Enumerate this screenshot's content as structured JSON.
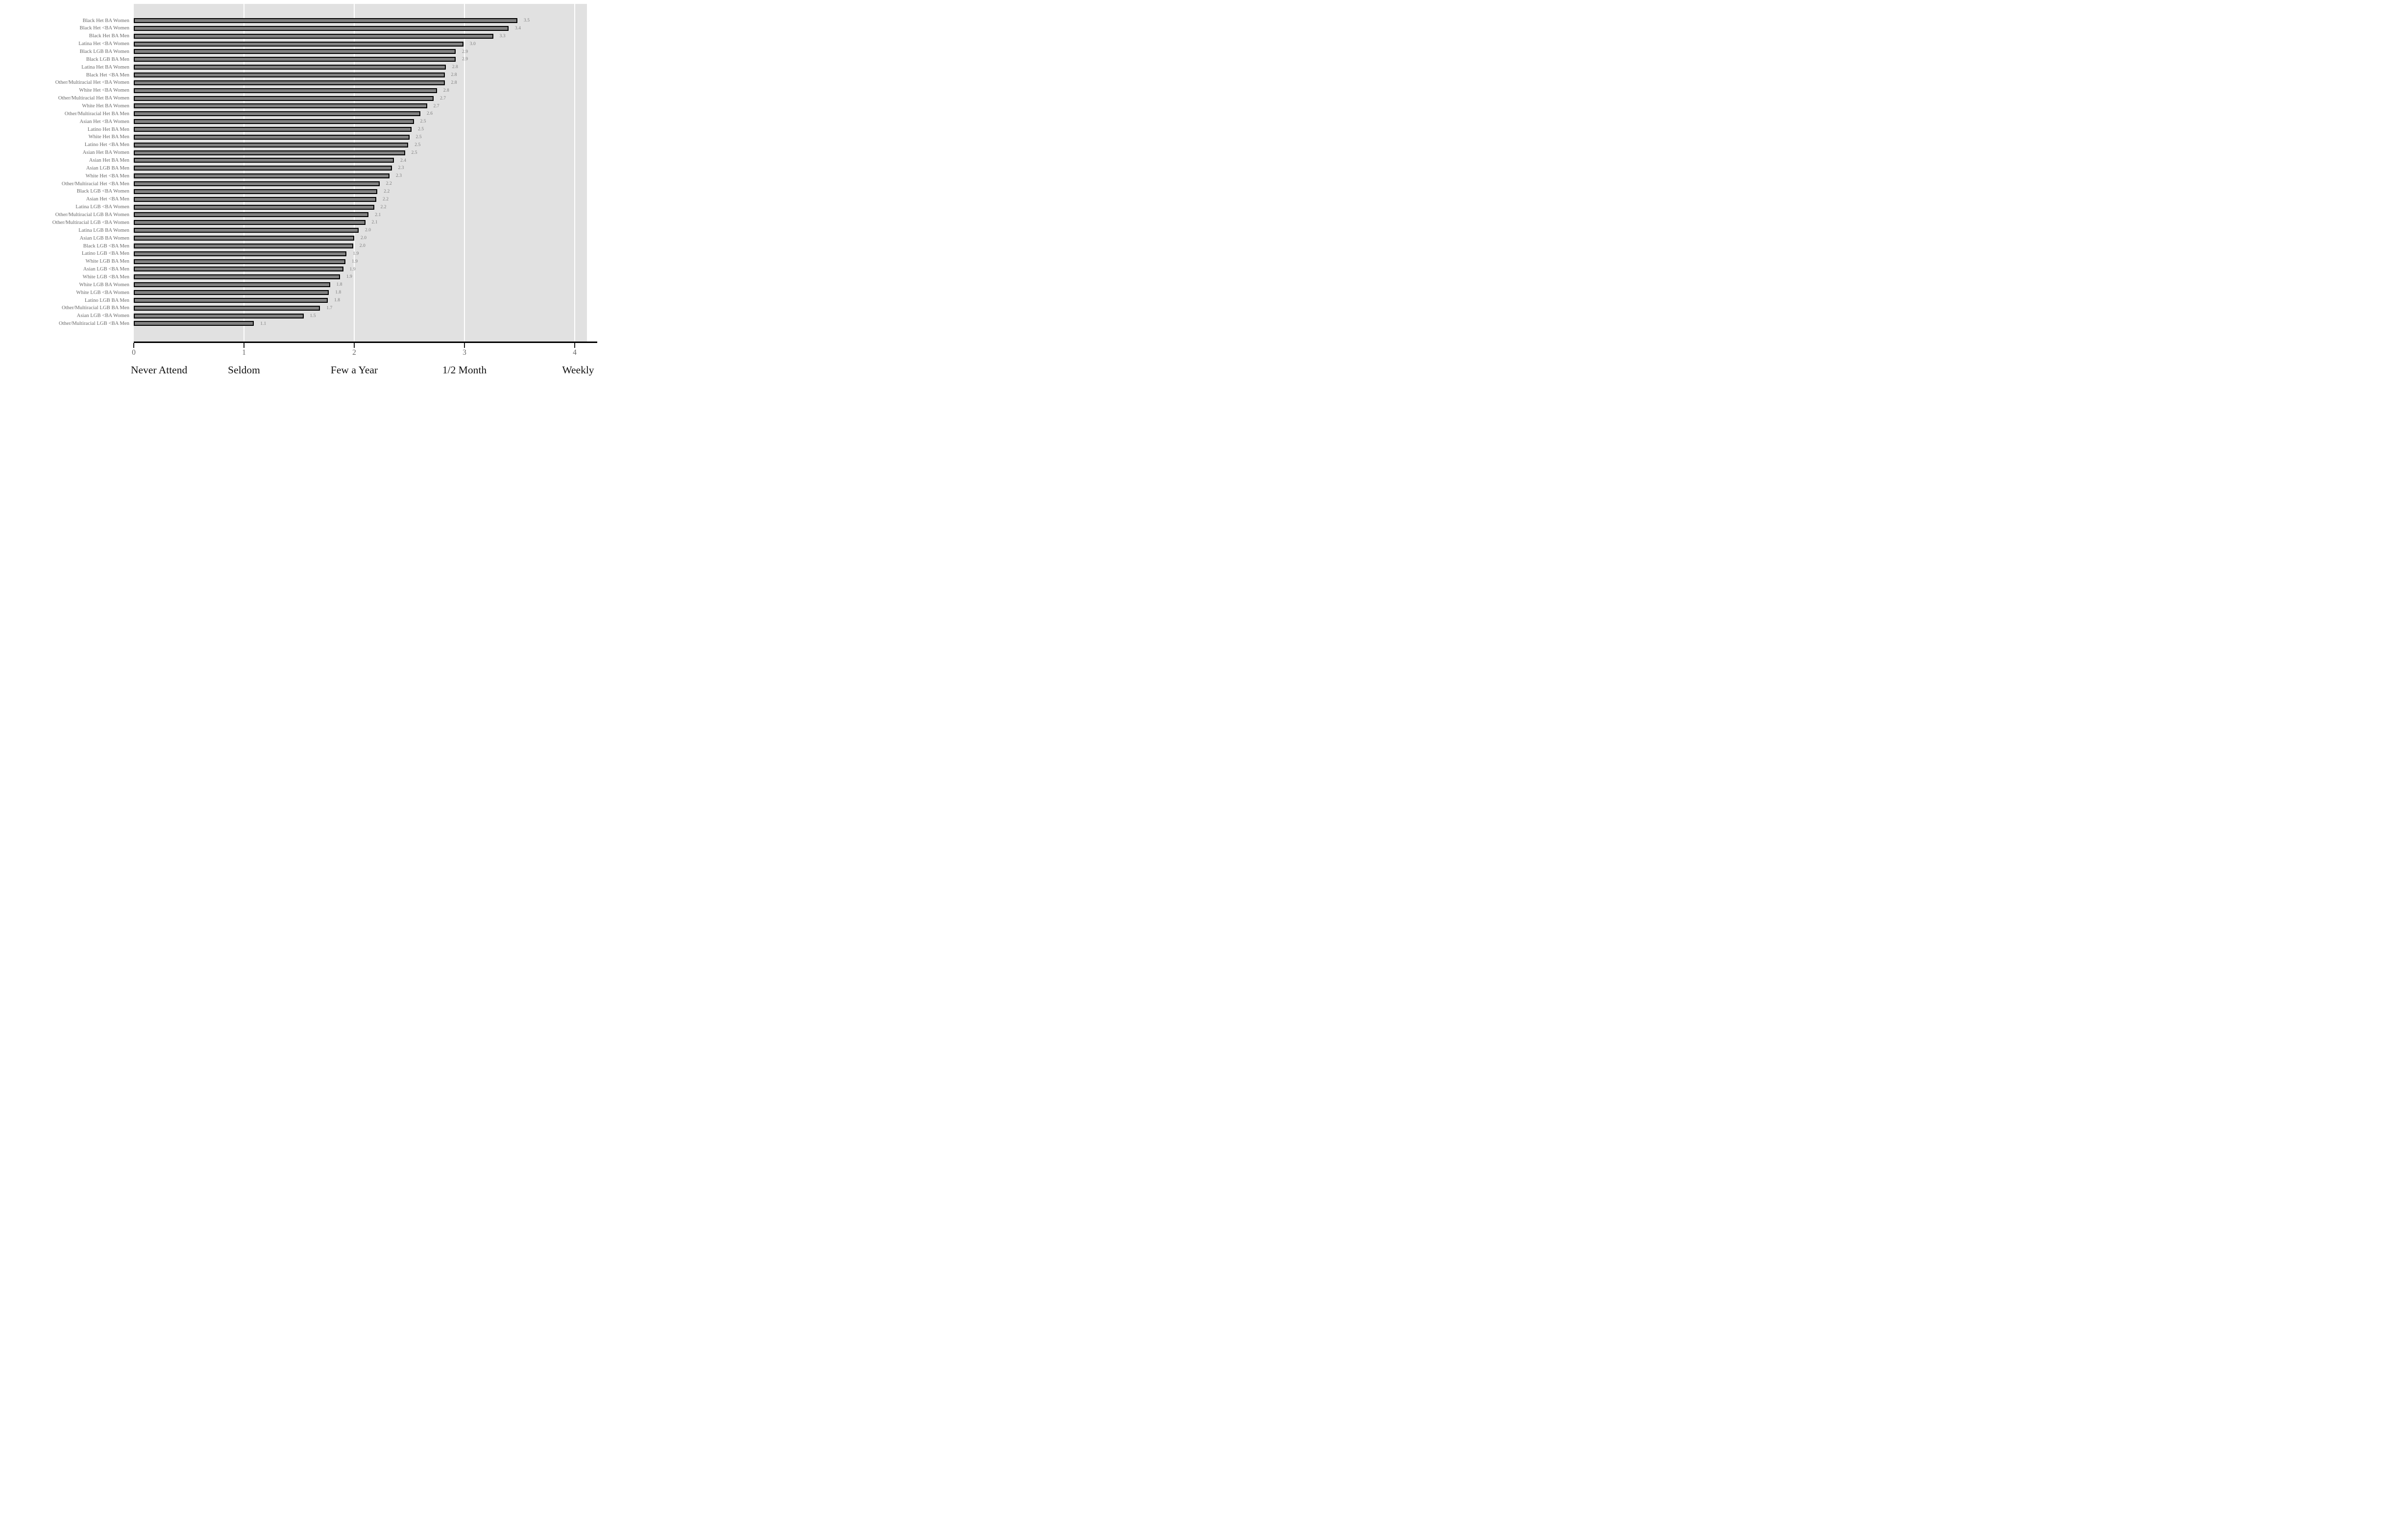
{
  "chart_data": {
    "type": "bar",
    "orientation": "horizontal",
    "title": "",
    "xlabel": "",
    "ylabel": "",
    "xlim": [
      0,
      4.11
    ],
    "grid": "vertical white gridlines at each x tick on gray plot background",
    "legend": null,
    "x_ticks": [
      0,
      1,
      2,
      3,
      4
    ],
    "x_tick_labels": [
      "0",
      "1",
      "2",
      "3",
      "4"
    ],
    "x_tick_names": [
      "Never Attend",
      "Seldom",
      "Few a Year",
      "1/2 Month",
      "Weekly"
    ],
    "categories": [
      "Black Het BA Women",
      "Black Het <BA Women",
      "Black Het BA Men",
      "Latina Het <BA Women",
      "Black LGB BA Women",
      "Black LGB BA Men",
      "Latina Het BA Women",
      "Black Het <BA Men",
      "Other/Multiracial Het <BA Women",
      "White Het <BA Women",
      "Other/Multiracial Het BA Women",
      "White Het BA Women",
      "Other/Multiracial Het BA Men",
      "Asian Het <BA Women",
      "Latino Het BA Men",
      "White Het BA Men",
      "Latino Het <BA Men",
      "Asian Het BA Women",
      "Asian Het BA Men",
      "Asian LGB BA Men",
      "White Het <BA Men",
      "Other/Multiracial Het <BA Men",
      "Black LGB <BA Women",
      "Asian Het <BA Men",
      "Latina LGB <BA Women",
      "Other/Multiracial LGB BA Women",
      "Other/Multiracial LGB <BA Women",
      "Latina LGB BA Women",
      "Asian LGB BA Women",
      "Black LGB <BA Men",
      "Latino LGB <BA Men",
      "White LGB BA Men",
      "Asian LGB <BA Men",
      "White LGB <BA Men",
      "White LGB BA Women",
      "White LGB <BA Women",
      "Latino LGB BA Men",
      "Other/Multiracial LGB BA Men",
      "Asian LGB <BA Women",
      "Other/Multiracial LGB <BA Men"
    ],
    "data_labels": [
      "3.5",
      "3.4",
      "3.3",
      "3.0",
      "2.9",
      "2.9",
      "2.8",
      "2.8",
      "2.8",
      "2.8",
      "2.7",
      "2.7",
      "2.6",
      "2.5",
      "2.5",
      "2.5",
      "2.5",
      "2.5",
      "2.4",
      "2.3",
      "2.3",
      "2.2",
      "2.2",
      "2.2",
      "2.2",
      "2.1",
      "2.1",
      "2.0",
      "2.0",
      "2.0",
      "1.9",
      "1.9",
      "1.9",
      "1.9",
      "1.8",
      "1.8",
      "1.8",
      "1.7",
      "1.5",
      "1.1"
    ],
    "values": [
      3.48,
      3.4,
      3.26,
      2.99,
      2.92,
      2.92,
      2.83,
      2.82,
      2.82,
      2.75,
      2.72,
      2.66,
      2.6,
      2.54,
      2.52,
      2.5,
      2.49,
      2.46,
      2.36,
      2.34,
      2.32,
      2.23,
      2.21,
      2.2,
      2.18,
      2.13,
      2.1,
      2.04,
      2.0,
      1.99,
      1.93,
      1.92,
      1.9,
      1.87,
      1.78,
      1.77,
      1.76,
      1.69,
      1.54,
      1.09
    ]
  },
  "colors": {
    "page_background": "#ffffff",
    "plot_background": "#e1e1e1",
    "bar_fill": "#828282",
    "bar_border": "#000000",
    "gridline": "#ffffff",
    "axis_line": "#000000",
    "y_label_text": "#686868",
    "value_label_text": "#7d7d7d",
    "tick_number_text": "#666666",
    "tick_name_text": "#111111"
  }
}
